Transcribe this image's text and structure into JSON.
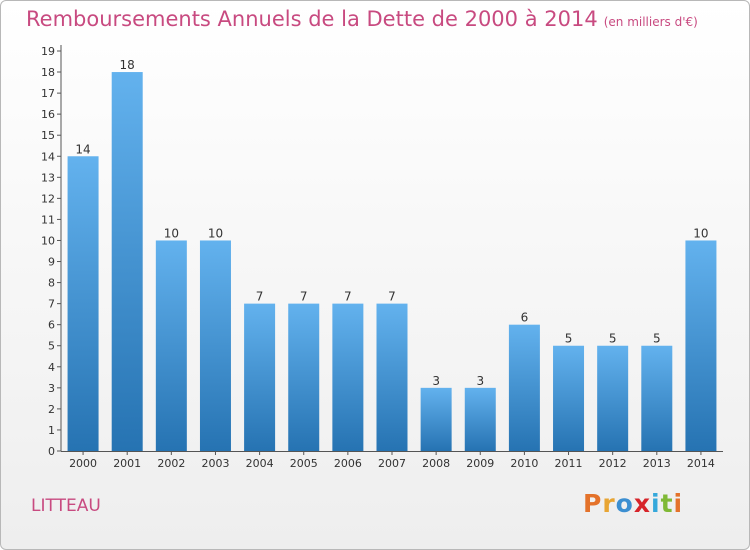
{
  "header": {
    "title": "Remboursements Annuels de la Dette de 2000 à 2014",
    "unit": "(en milliers d'€)"
  },
  "footer": {
    "commune": "LITTEAU",
    "logo": "Proxiti"
  },
  "colors": {
    "title": "#c84a80",
    "bar_light": "#63b2ee",
    "bar_dark": "#2673b2",
    "logo_letters": [
      "#e4722a",
      "#e8a533",
      "#3c8fd1",
      "#d7242a",
      "#35a8db",
      "#80b936",
      "#e4722a"
    ]
  },
  "chart_data": {
    "type": "bar",
    "title": "Remboursements Annuels de la Dette de 2000 à 2014",
    "ylabel": "(en milliers d'€)",
    "categories": [
      "2000",
      "2001",
      "2002",
      "2003",
      "2004",
      "2005",
      "2006",
      "2007",
      "2008",
      "2009",
      "2010",
      "2011",
      "2012",
      "2013",
      "2014"
    ],
    "values": [
      14,
      18,
      10,
      10,
      7,
      7,
      7,
      7,
      3,
      3,
      6,
      5,
      5,
      5,
      10
    ],
    "ylim": [
      0,
      19
    ],
    "yticks": [
      0,
      1,
      2,
      3,
      4,
      5,
      6,
      7,
      8,
      9,
      10,
      11,
      12,
      13,
      14,
      15,
      16,
      17,
      18,
      19
    ],
    "grid": false,
    "data_labels": true
  }
}
